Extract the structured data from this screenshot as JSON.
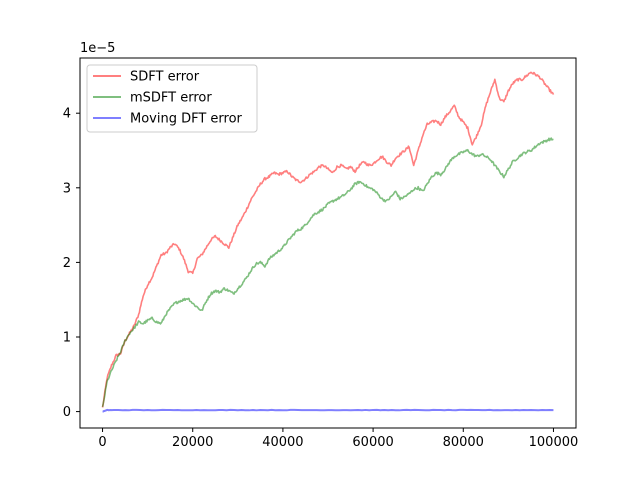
{
  "chart_data": {
    "type": "line",
    "title": "",
    "xlabel": "",
    "ylabel": "",
    "offset_text": "1e−5",
    "y_multiplier": 1e-05,
    "xlim": [
      -5000,
      105000
    ],
    "ylim": [
      -0.22,
      4.74
    ],
    "xticks": [
      0,
      20000,
      40000,
      60000,
      80000,
      100000
    ],
    "xtick_labels": [
      "0",
      "20000",
      "40000",
      "60000",
      "80000",
      "100000"
    ],
    "yticks": [
      0,
      1,
      2,
      3,
      4
    ],
    "ytick_labels": [
      "0",
      "1",
      "2",
      "3",
      "4"
    ],
    "grid": false,
    "legend_position": "upper-left",
    "series": [
      {
        "name": "SDFT error",
        "color": "#ff0000",
        "alpha": 0.5,
        "x": [
          0,
          1000,
          2000,
          3000,
          4000,
          5000,
          6000,
          7000,
          8000,
          9000,
          10000,
          11000,
          12000,
          13000,
          14000,
          15000,
          16000,
          17000,
          18000,
          19000,
          20000,
          21000,
          22000,
          23000,
          24000,
          25000,
          26000,
          27000,
          28000,
          29000,
          30000,
          31000,
          32000,
          33000,
          34000,
          35000,
          36000,
          37000,
          38000,
          39000,
          40000,
          41000,
          42000,
          43000,
          44000,
          45000,
          46000,
          47000,
          48000,
          49000,
          50000,
          51000,
          52000,
          53000,
          54000,
          55000,
          56000,
          57000,
          58000,
          59000,
          60000,
          61000,
          62000,
          63000,
          64000,
          65000,
          66000,
          67000,
          68000,
          69000,
          70000,
          71000,
          72000,
          73000,
          74000,
          75000,
          76000,
          77000,
          78000,
          79000,
          80000,
          81000,
          82000,
          83000,
          84000,
          85000,
          86000,
          87000,
          88000,
          89000,
          90000,
          91000,
          92000,
          93000,
          94000,
          95000,
          96000,
          97000,
          98000,
          99000,
          100000
        ],
        "y": [
          0.05,
          0.45,
          0.62,
          0.75,
          0.78,
          0.95,
          1.05,
          1.15,
          1.3,
          1.55,
          1.7,
          1.8,
          1.95,
          2.1,
          2.12,
          2.2,
          2.25,
          2.18,
          2.05,
          1.88,
          1.85,
          2.05,
          2.1,
          2.2,
          2.3,
          2.35,
          2.3,
          2.25,
          2.2,
          2.35,
          2.5,
          2.6,
          2.72,
          2.85,
          2.95,
          3.05,
          3.12,
          3.15,
          3.2,
          3.18,
          3.2,
          3.22,
          3.15,
          3.1,
          3.08,
          3.12,
          3.18,
          3.22,
          3.28,
          3.3,
          3.25,
          3.2,
          3.28,
          3.3,
          3.25,
          3.28,
          3.22,
          3.3,
          3.35,
          3.3,
          3.32,
          3.38,
          3.42,
          3.35,
          3.3,
          3.4,
          3.45,
          3.5,
          3.55,
          3.3,
          3.5,
          3.7,
          3.85,
          3.88,
          3.9,
          3.85,
          3.95,
          4.02,
          4.1,
          3.95,
          3.88,
          3.8,
          3.58,
          3.7,
          3.85,
          4.1,
          4.28,
          4.45,
          4.2,
          4.15,
          4.3,
          4.4,
          4.45,
          4.45,
          4.5,
          4.55,
          4.52,
          4.48,
          4.4,
          4.32,
          4.25
        ]
      },
      {
        "name": "mSDFT error",
        "color": "#008000",
        "alpha": 0.5,
        "x": [
          0,
          1000,
          2000,
          3000,
          4000,
          5000,
          6000,
          7000,
          8000,
          9000,
          10000,
          11000,
          12000,
          13000,
          14000,
          15000,
          16000,
          17000,
          18000,
          19000,
          20000,
          21000,
          22000,
          23000,
          24000,
          25000,
          26000,
          27000,
          28000,
          29000,
          30000,
          31000,
          32000,
          33000,
          34000,
          35000,
          36000,
          37000,
          38000,
          39000,
          40000,
          41000,
          42000,
          43000,
          44000,
          45000,
          46000,
          47000,
          48000,
          49000,
          50000,
          51000,
          52000,
          53000,
          54000,
          55000,
          56000,
          57000,
          58000,
          59000,
          60000,
          61000,
          62000,
          63000,
          64000,
          65000,
          66000,
          67000,
          68000,
          69000,
          70000,
          71000,
          72000,
          73000,
          74000,
          75000,
          76000,
          77000,
          78000,
          79000,
          80000,
          81000,
          82000,
          83000,
          84000,
          85000,
          86000,
          87000,
          88000,
          89000,
          90000,
          91000,
          92000,
          93000,
          94000,
          95000,
          96000,
          97000,
          98000,
          99000,
          100000
        ],
        "y": [
          0.05,
          0.4,
          0.55,
          0.68,
          0.8,
          0.95,
          1.05,
          1.12,
          1.2,
          1.18,
          1.22,
          1.25,
          1.2,
          1.18,
          1.3,
          1.38,
          1.45,
          1.48,
          1.5,
          1.52,
          1.45,
          1.4,
          1.35,
          1.48,
          1.58,
          1.62,
          1.6,
          1.65,
          1.62,
          1.58,
          1.65,
          1.72,
          1.8,
          1.9,
          1.98,
          2.0,
          1.95,
          2.05,
          2.1,
          2.15,
          2.2,
          2.28,
          2.35,
          2.42,
          2.45,
          2.5,
          2.58,
          2.65,
          2.68,
          2.72,
          2.78,
          2.82,
          2.85,
          2.88,
          2.92,
          2.98,
          3.05,
          3.08,
          3.05,
          3.0,
          2.98,
          2.92,
          2.85,
          2.82,
          2.88,
          2.95,
          2.85,
          2.88,
          2.92,
          2.98,
          3.0,
          2.95,
          3.05,
          3.15,
          3.2,
          3.18,
          3.25,
          3.35,
          3.42,
          3.45,
          3.48,
          3.5,
          3.45,
          3.42,
          3.45,
          3.42,
          3.38,
          3.3,
          3.22,
          3.15,
          3.25,
          3.35,
          3.4,
          3.45,
          3.48,
          3.5,
          3.55,
          3.6,
          3.62,
          3.65,
          3.65
        ]
      },
      {
        "name": "Moving DFT error",
        "color": "#0000ff",
        "alpha": 0.5,
        "x": [
          0,
          1000,
          2000,
          5000,
          10000,
          15000,
          20000,
          25000,
          30000,
          35000,
          40000,
          45000,
          50000,
          55000,
          60000,
          65000,
          70000,
          75000,
          80000,
          85000,
          90000,
          95000,
          100000
        ],
        "y": [
          0.0,
          0.02,
          0.02,
          0.02,
          0.02,
          0.02,
          0.02,
          0.02,
          0.02,
          0.02,
          0.02,
          0.02,
          0.02,
          0.02,
          0.02,
          0.02,
          0.02,
          0.02,
          0.02,
          0.02,
          0.02,
          0.02,
          0.02
        ]
      }
    ]
  }
}
